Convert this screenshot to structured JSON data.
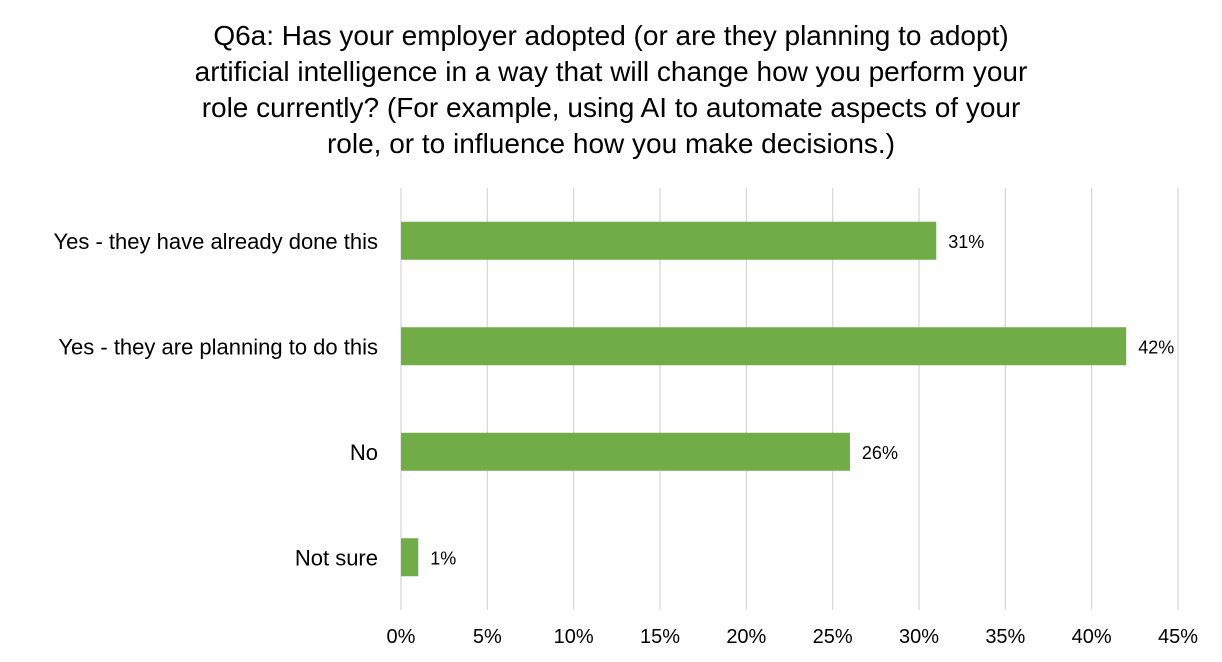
{
  "chart_data": {
    "type": "bar",
    "orientation": "horizontal",
    "title_lines": [
      "Q6a: Has your employer adopted (or are they planning to adopt)",
      "artificial intelligence in a way that will change how you perform your",
      "role currently? (For example, using AI to automate aspects of your",
      "role, or to influence how you make decisions.)"
    ],
    "categories": [
      "Yes - they have already done this",
      "Yes - they are planning to do this",
      "No",
      "Not sure"
    ],
    "values": [
      31,
      42,
      26,
      1
    ],
    "data_labels": [
      "31%",
      "42%",
      "26%",
      "1%"
    ],
    "xlim": [
      0,
      45
    ],
    "xticks": [
      0,
      5,
      10,
      15,
      20,
      25,
      30,
      35,
      40,
      45
    ],
    "xtick_labels": [
      "0%",
      "5%",
      "10%",
      "15%",
      "20%",
      "25%",
      "30%",
      "35%",
      "40%",
      "45%"
    ],
    "grid": "vertical",
    "legend": "none",
    "colors": {
      "bar": "#70ad47",
      "grid": "#d9d9d9"
    }
  }
}
